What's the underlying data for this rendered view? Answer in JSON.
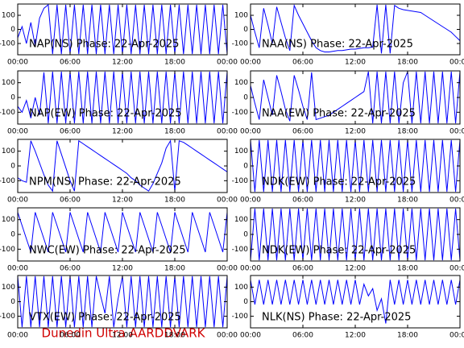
{
  "chart_data": [
    {
      "type": "line",
      "title": "NAP(NS) Phase: 22-Apr-2025",
      "color": "#0000ff",
      "xlim": [
        0,
        24
      ],
      "ylim": [
        -180,
        180
      ],
      "yticks": [
        -100,
        0,
        100
      ],
      "xticks": [
        {
          "value": 0,
          "label": "00:00"
        },
        {
          "value": 6,
          "label": "06:00"
        },
        {
          "value": 12,
          "label": "12:00"
        },
        {
          "value": 18,
          "label": "18:00"
        },
        {
          "value": 24,
          "label": "00:00"
        }
      ],
      "x": [
        0,
        0.5,
        1,
        1.5,
        2,
        2.5,
        3,
        3.5,
        4,
        4.5,
        5,
        5.5,
        6,
        6.5,
        7,
        7.5,
        8,
        8.5,
        9,
        9.5,
        10,
        10.5,
        11,
        11.5,
        12,
        12.5,
        13,
        13.5,
        14,
        14.5,
        15,
        15.5,
        16,
        16.5,
        17,
        17.5,
        18,
        18.5,
        19,
        19.5,
        20,
        20.5,
        21,
        21.5,
        22,
        22.5,
        23,
        23.5,
        24
      ],
      "values": [
        -60,
        20,
        -100,
        50,
        -120,
        80,
        150,
        175,
        -175,
        175,
        -175,
        175,
        -175,
        175,
        -175,
        175,
        -175,
        175,
        -175,
        175,
        -175,
        175,
        -175,
        175,
        -175,
        175,
        -175,
        175,
        -175,
        175,
        -175,
        175,
        -175,
        175,
        -175,
        175,
        -175,
        175,
        -175,
        175,
        -175,
        175,
        -175,
        175,
        -175,
        175,
        -175,
        175,
        -175
      ]
    },
    {
      "type": "line",
      "title": "NAA(NS) Phase: 22-Apr-2025",
      "color": "#0000ff",
      "xlim": [
        0,
        24
      ],
      "ylim": [
        -180,
        180
      ],
      "yticks": [
        -100,
        0,
        100
      ],
      "xticks": [
        {
          "value": 0,
          "label": "00:00"
        },
        {
          "value": 6,
          "label": "06:00"
        },
        {
          "value": 12,
          "label": "12:00"
        },
        {
          "value": 18,
          "label": "18:00"
        },
        {
          "value": 24,
          "label": "00:00"
        }
      ],
      "x": [
        0,
        0.5,
        1,
        1.5,
        2,
        2.5,
        3,
        3.5,
        4,
        4.5,
        5,
        5.5,
        6,
        6.5,
        7,
        7.5,
        8,
        8.5,
        9,
        9.5,
        10,
        10.5,
        11,
        11.5,
        12,
        12.5,
        13,
        13.5,
        14,
        14.5,
        15,
        15.5,
        16,
        16.5,
        17,
        17.5,
        18,
        18.5,
        19,
        19.5,
        20,
        20.5,
        21,
        21.5,
        22,
        22.5,
        23,
        23.5,
        24
      ],
      "values": [
        100,
        -20,
        -130,
        150,
        30,
        -100,
        160,
        50,
        -60,
        -150,
        170,
        100,
        40,
        -20,
        -80,
        -130,
        -150,
        -160,
        -160,
        -155,
        -150,
        -150,
        -145,
        -140,
        -140,
        -135,
        -130,
        -130,
        -125,
        175,
        -170,
        175,
        -170,
        170,
        150,
        140,
        135,
        130,
        125,
        120,
        100,
        80,
        60,
        40,
        20,
        0,
        -20,
        -50,
        -80
      ]
    },
    {
      "type": "line",
      "title": "NAP(EW) Phase: 22-Apr-2025",
      "color": "#0000ff",
      "xlim": [
        0,
        24
      ],
      "ylim": [
        -180,
        180
      ],
      "yticks": [
        -100,
        0,
        100
      ],
      "xticks": [
        {
          "value": 0,
          "label": "00:00"
        },
        {
          "value": 6,
          "label": "06:00"
        },
        {
          "value": 12,
          "label": "12:00"
        },
        {
          "value": 18,
          "label": "18:00"
        },
        {
          "value": 24,
          "label": "00:00"
        }
      ],
      "x": [
        0,
        0.5,
        1,
        1.5,
        2,
        2.5,
        3,
        3.5,
        4,
        4.5,
        5,
        5.5,
        6,
        6.5,
        7,
        7.5,
        8,
        8.5,
        9,
        9.5,
        10,
        10.5,
        11,
        11.5,
        12,
        12.5,
        13,
        13.5,
        14,
        14.5,
        15,
        15.5,
        16,
        16.5,
        17,
        17.5,
        18,
        18.5,
        19,
        19.5,
        20,
        20.5,
        21,
        21.5,
        22,
        22.5,
        23,
        23.5,
        24
      ],
      "values": [
        -60,
        -100,
        -20,
        -140,
        0,
        -120,
        170,
        -175,
        175,
        -175,
        175,
        -175,
        175,
        -175,
        175,
        -175,
        175,
        -175,
        175,
        -175,
        175,
        -175,
        175,
        -175,
        175,
        -175,
        175,
        -175,
        175,
        -175,
        175,
        -175,
        175,
        -175,
        175,
        -175,
        175,
        -175,
        175,
        -175,
        175,
        -175,
        175,
        -175,
        175,
        -175,
        175,
        -175,
        175
      ]
    },
    {
      "type": "line",
      "title": "NAA(EW) Phase: 22-Apr-2025",
      "color": "#0000ff",
      "xlim": [
        0,
        24
      ],
      "ylim": [
        -180,
        180
      ],
      "yticks": [
        -100,
        0,
        100
      ],
      "xticks": [
        {
          "value": 0,
          "label": "00:00"
        },
        {
          "value": 6,
          "label": "06:00"
        },
        {
          "value": 12,
          "label": "12:00"
        },
        {
          "value": 18,
          "label": "18:00"
        },
        {
          "value": 24,
          "label": "00:00"
        }
      ],
      "x": [
        0,
        0.5,
        1,
        1.5,
        2,
        2.5,
        3,
        3.5,
        4,
        4.5,
        5,
        5.5,
        6,
        6.5,
        7,
        7.5,
        8,
        8.5,
        9,
        9.5,
        10,
        10.5,
        11,
        11.5,
        12,
        12.5,
        13,
        13.5,
        14,
        14.5,
        15,
        15.5,
        16,
        16.5,
        17,
        17.5,
        18,
        18.5,
        19,
        19.5,
        20,
        20.5,
        21,
        21.5,
        22,
        22.5,
        23,
        23.5,
        24
      ],
      "values": [
        80,
        -40,
        -150,
        120,
        0,
        -120,
        150,
        40,
        -80,
        -160,
        150,
        50,
        -60,
        -150,
        170,
        -150,
        -140,
        -130,
        -120,
        -100,
        -80,
        -60,
        -40,
        -20,
        0,
        20,
        40,
        175,
        -175,
        175,
        -175,
        175,
        -175,
        175,
        -175,
        100,
        175,
        -175,
        175,
        -175,
        175,
        -175,
        175,
        -175,
        175,
        -175,
        175,
        -175,
        175
      ]
    },
    {
      "type": "line",
      "title": "NPM(NS) Phase: 22-Apr-2025",
      "color": "#0000ff",
      "xlim": [
        0,
        24
      ],
      "ylim": [
        -180,
        180
      ],
      "yticks": [
        -100,
        0,
        100
      ],
      "xticks": [
        {
          "value": 0,
          "label": "00:00"
        },
        {
          "value": 6,
          "label": "06:00"
        },
        {
          "value": 12,
          "label": "12:00"
        },
        {
          "value": 18,
          "label": "18:00"
        },
        {
          "value": 24,
          "label": "00:00"
        }
      ],
      "x": [
        0,
        0.5,
        1,
        1.5,
        2,
        2.5,
        3,
        3.5,
        4,
        4.5,
        5,
        5.5,
        6,
        6.5,
        7,
        7.5,
        8,
        8.5,
        9,
        9.5,
        10,
        10.5,
        11,
        11.5,
        12,
        12.5,
        13,
        13.5,
        14,
        14.5,
        15,
        15.5,
        16,
        16.5,
        17,
        17.5,
        18,
        18.5,
        19,
        19.5,
        20,
        20.5,
        21,
        21.5,
        22,
        22.5,
        23,
        23.5,
        24
      ],
      "values": [
        -80,
        -100,
        -110,
        170,
        100,
        20,
        -60,
        -130,
        -170,
        170,
        80,
        -10,
        -100,
        -170,
        170,
        150,
        130,
        110,
        90,
        70,
        50,
        30,
        10,
        -10,
        -30,
        -50,
        -80,
        -100,
        -130,
        -150,
        -170,
        -120,
        -50,
        20,
        120,
        170,
        -170,
        170,
        160,
        140,
        120,
        100,
        80,
        60,
        40,
        20,
        0,
        -20,
        -40
      ]
    },
    {
      "type": "line",
      "title": "NDK(EW) Phase: 22-Apr-2025",
      "color": "#0000ff",
      "xlim": [
        0,
        24
      ],
      "ylim": [
        -180,
        180
      ],
      "yticks": [
        -100,
        0,
        100
      ],
      "xticks": [
        {
          "value": 0,
          "label": "00:00"
        },
        {
          "value": 6,
          "label": "06:00"
        },
        {
          "value": 12,
          "label": "12:00"
        },
        {
          "value": 18,
          "label": "18:00"
        },
        {
          "value": 24,
          "label": "00:00"
        }
      ],
      "x": [
        0,
        0.5,
        1,
        1.5,
        2,
        2.5,
        3,
        3.5,
        4,
        4.5,
        5,
        5.5,
        6,
        6.5,
        7,
        7.5,
        8,
        8.5,
        9,
        9.5,
        10,
        10.5,
        11,
        11.5,
        12,
        12.5,
        13,
        13.5,
        14,
        14.5,
        15,
        15.5,
        16,
        16.5,
        17,
        17.5,
        18,
        18.5,
        19,
        19.5,
        20,
        20.5,
        21,
        21.5,
        22,
        22.5,
        23,
        23.5,
        24
      ],
      "values": [
        175,
        -175,
        175,
        -175,
        175,
        -175,
        175,
        -175,
        175,
        -175,
        175,
        -175,
        175,
        -175,
        175,
        -175,
        175,
        -175,
        175,
        -175,
        175,
        -175,
        175,
        -175,
        175,
        -175,
        175,
        -175,
        175,
        -175,
        175,
        -175,
        175,
        -175,
        175,
        -175,
        175,
        -175,
        175,
        -175,
        175,
        -175,
        175,
        -175,
        175,
        -175,
        175,
        -175,
        175
      ]
    },
    {
      "type": "line",
      "title": "NWC(EW) Phase: 22-Apr-2025",
      "color": "#0000ff",
      "xlim": [
        0,
        24
      ],
      "ylim": [
        -180,
        180
      ],
      "yticks": [
        -100,
        0,
        100
      ],
      "xticks": [
        {
          "value": 0,
          "label": "00:00"
        },
        {
          "value": 6,
          "label": "06:00"
        },
        {
          "value": 12,
          "label": "12:00"
        },
        {
          "value": 18,
          "label": "18:00"
        },
        {
          "value": 24,
          "label": "00:00"
        }
      ],
      "x": [
        0,
        0.5,
        1,
        1.5,
        2,
        2.5,
        3,
        3.5,
        4,
        4.5,
        5,
        5.5,
        6,
        6.5,
        7,
        7.5,
        8,
        8.5,
        9,
        9.5,
        10,
        10.5,
        11,
        11.5,
        12,
        12.5,
        13,
        13.5,
        14,
        14.5,
        15,
        15.5,
        16,
        16.5,
        17,
        17.5,
        18,
        18.5,
        19,
        19.5,
        20,
        20.5,
        21,
        21.5,
        22,
        22.5,
        23,
        23.5,
        24
      ],
      "values": [
        150,
        60,
        -30,
        -120,
        150,
        60,
        -30,
        -120,
        150,
        60,
        -30,
        -120,
        150,
        60,
        -30,
        -120,
        150,
        60,
        -30,
        -120,
        150,
        60,
        -30,
        -120,
        150,
        60,
        -30,
        -120,
        150,
        60,
        -30,
        -120,
        150,
        60,
        -30,
        -120,
        150,
        60,
        -30,
        -120,
        150,
        60,
        -30,
        -120,
        150,
        60,
        -30,
        -120,
        150
      ]
    },
    {
      "type": "line",
      "title": "NDK(EW) Phase: 22-Apr-2025",
      "color": "#0000ff",
      "xlim": [
        0,
        24
      ],
      "ylim": [
        -180,
        180
      ],
      "yticks": [
        -100,
        0,
        100
      ],
      "xticks": [
        {
          "value": 0,
          "label": "00:00"
        },
        {
          "value": 6,
          "label": "06:00"
        },
        {
          "value": 12,
          "label": "12:00"
        },
        {
          "value": 18,
          "label": "18:00"
        },
        {
          "value": 24,
          "label": "00:00"
        }
      ],
      "x": [
        0,
        0.5,
        1,
        1.5,
        2,
        2.5,
        3,
        3.5,
        4,
        4.5,
        5,
        5.5,
        6,
        6.5,
        7,
        7.5,
        8,
        8.5,
        9,
        9.5,
        10,
        10.5,
        11,
        11.5,
        12,
        12.5,
        13,
        13.5,
        14,
        14.5,
        15,
        15.5,
        16,
        16.5,
        17,
        17.5,
        18,
        18.5,
        19,
        19.5,
        20,
        20.5,
        21,
        21.5,
        22,
        22.5,
        23,
        23.5,
        24
      ],
      "values": [
        -175,
        175,
        -175,
        175,
        -175,
        175,
        -175,
        175,
        -175,
        175,
        -175,
        175,
        -175,
        175,
        -175,
        175,
        -175,
        175,
        -175,
        175,
        -175,
        175,
        -175,
        175,
        -175,
        175,
        -175,
        175,
        -175,
        175,
        -175,
        175,
        -175,
        175,
        -175,
        175,
        -175,
        175,
        -175,
        175,
        -175,
        175,
        -175,
        175,
        -175,
        175,
        -175,
        175,
        -175
      ]
    },
    {
      "type": "line",
      "title": "VTX(EW) Phase: 22-Apr-2025",
      "color": "#0000ff",
      "xlim": [
        0,
        24
      ],
      "ylim": [
        -180,
        180
      ],
      "yticks": [
        -100,
        0,
        100
      ],
      "xticks": [
        {
          "value": 0,
          "label": "00:00"
        },
        {
          "value": 6,
          "label": "06:00"
        },
        {
          "value": 12,
          "label": "12:00"
        },
        {
          "value": 18,
          "label": "18:00"
        },
        {
          "value": 24,
          "label": "00:00"
        }
      ],
      "x": [
        0,
        0.5,
        1,
        1.5,
        2,
        2.5,
        3,
        3.5,
        4,
        4.5,
        5,
        5.5,
        6,
        6.5,
        7,
        7.5,
        8,
        8.5,
        9,
        9.5,
        10,
        10.5,
        11,
        11.5,
        12,
        12.5,
        13,
        13.5,
        14,
        14.5,
        15,
        15.5,
        16,
        16.5,
        17,
        17.5,
        18,
        18.5,
        19,
        19.5,
        20,
        20.5,
        21,
        21.5,
        22,
        22.5,
        23,
        23.5,
        24
      ],
      "values": [
        175,
        -175,
        175,
        -175,
        175,
        -175,
        175,
        -175,
        175,
        -175,
        175,
        -175,
        175,
        -175,
        175,
        -175,
        175,
        -175,
        175,
        40,
        -80,
        175,
        -175,
        20,
        175,
        -175,
        175,
        -175,
        175,
        -175,
        175,
        -175,
        175,
        -175,
        175,
        -175,
        175,
        -175,
        175,
        -175,
        175,
        -175,
        175,
        -175,
        175,
        -175,
        175,
        -175,
        175
      ]
    },
    {
      "type": "line",
      "title": "NLK(NS) Phase: 22-Apr-2025",
      "color": "#0000ff",
      "xlim": [
        0,
        24
      ],
      "ylim": [
        -180,
        180
      ],
      "yticks": [
        -100,
        0,
        100
      ],
      "xticks": [
        {
          "value": 0,
          "label": "00:00"
        },
        {
          "value": 6,
          "label": "06:00"
        },
        {
          "value": 12,
          "label": "12:00"
        },
        {
          "value": 18,
          "label": "18:00"
        },
        {
          "value": 24,
          "label": "00:00"
        }
      ],
      "x": [
        0,
        0.5,
        1,
        1.5,
        2,
        2.5,
        3,
        3.5,
        4,
        4.5,
        5,
        5.5,
        6,
        6.5,
        7,
        7.5,
        8,
        8.5,
        9,
        9.5,
        10,
        10.5,
        11,
        11.5,
        12,
        12.5,
        13,
        13.5,
        14,
        14.5,
        15,
        15.5,
        16,
        16.5,
        17,
        17.5,
        18,
        18.5,
        19,
        19.5,
        20,
        20.5,
        21,
        21.5,
        22,
        22.5,
        23,
        23.5,
        24
      ],
      "values": [
        150,
        -20,
        150,
        -20,
        150,
        -20,
        150,
        -20,
        150,
        -20,
        150,
        -20,
        150,
        -20,
        150,
        -20,
        150,
        -20,
        150,
        -20,
        150,
        -20,
        150,
        -20,
        150,
        -20,
        120,
        40,
        90,
        -60,
        20,
        -150,
        150,
        -20,
        150,
        -20,
        150,
        -20,
        150,
        -20,
        150,
        -20,
        150,
        -20,
        150,
        -20,
        150,
        -20,
        150
      ]
    }
  ],
  "footer": "Dunedin Ultra AARDDVARK"
}
